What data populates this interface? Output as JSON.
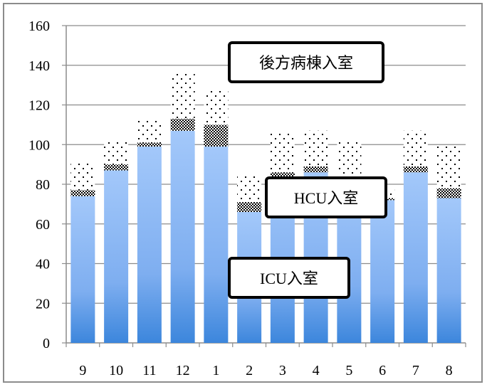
{
  "chart_data": {
    "type": "bar",
    "stacked": true,
    "categories": [
      "9",
      "10",
      "11",
      "12",
      "1",
      "2",
      "3",
      "4",
      "5",
      "6",
      "7",
      "8"
    ],
    "series": [
      {
        "name": "ICU入室",
        "values": [
          74,
          87,
          99,
          107,
          99,
          66,
          84,
          86,
          82,
          72,
          86,
          73
        ],
        "color": "#8ab8f5",
        "pattern": "gradient-blue"
      },
      {
        "name": "HCU入室",
        "values": [
          3,
          3,
          2,
          6,
          11,
          5,
          2,
          3,
          1,
          1,
          3,
          5
        ],
        "color": "#555555",
        "pattern": "checker"
      },
      {
        "name": "後方病棟入室",
        "values": [
          14,
          12,
          11,
          23,
          18,
          14,
          20,
          18,
          19,
          5,
          18,
          21
        ],
        "color": "#ffffff",
        "pattern": "dots"
      }
    ],
    "ylim": [
      0,
      160
    ],
    "yticks": [
      "0",
      "20",
      "40",
      "60",
      "80",
      "100",
      "120",
      "140",
      "160"
    ],
    "grid": true,
    "title": "",
    "xlabel": "",
    "ylabel": "",
    "annotations": [
      "後方病棟入室",
      "HCU入室",
      "ICU入室"
    ]
  }
}
